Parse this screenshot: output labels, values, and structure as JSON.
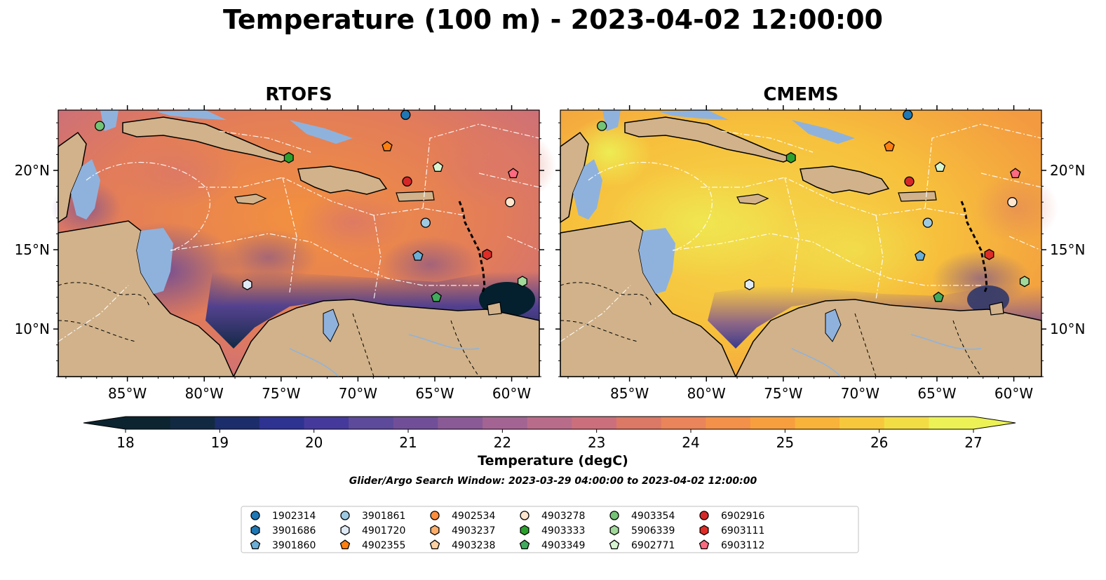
{
  "title": "Temperature (100 m) - 2023-04-02 12:00:00",
  "colors": {
    "land": "#d1b28a",
    "shallow_water": "#8fb2dd",
    "deep_low": "#04202e",
    "contour": "#ffffff"
  },
  "colorbar": {
    "label": "Temperature (degC)",
    "ticks": [
      18,
      19,
      20,
      21,
      22,
      23,
      24,
      25,
      26,
      27
    ],
    "min": 18,
    "max": 27,
    "step": 0.5,
    "extend": "both",
    "stops": [
      "#0b2430",
      "#122942",
      "#1c2d6b",
      "#2e3291",
      "#453a9b",
      "#5d4a9a",
      "#714f98",
      "#8a5a96",
      "#a36493",
      "#b96c8a",
      "#cb6f7d",
      "#dc7866",
      "#ea845a",
      "#f39049",
      "#f79f3f",
      "#f8b33a",
      "#f8c83c",
      "#f3dd45",
      "#ecf256"
    ]
  },
  "search_window": "Glider/Argo Search Window: 2023-03-29 04:00:00 to 2023-04-02 12:00:00",
  "chart_data": [
    {
      "type": "heatmap",
      "title": "RTOFS",
      "variable": "Temperature (degC)",
      "xlim": [
        -89.5,
        -58.2
      ],
      "ylim": [
        7.0,
        23.8
      ],
      "x_ticks": [
        "85°W",
        "80°W",
        "75°W",
        "70°W",
        "65°W",
        "60°W"
      ],
      "y_ticks": [
        "10°N",
        "15°N",
        "20°N"
      ],
      "y_tick_side": "left",
      "tone": "warm-orange basin with purple eddies, cold band along northern South America",
      "floats": [
        {
          "id": "4903354",
          "lon": -86.8,
          "lat": 22.8
        },
        {
          "id": "4903333",
          "lon": -74.5,
          "lat": 20.8
        },
        {
          "id": "1902314",
          "lon": -66.9,
          "lat": 23.5
        },
        {
          "id": "4902355",
          "lon": -68.1,
          "lat": 21.5
        },
        {
          "id": "6902771",
          "lon": -64.8,
          "lat": 20.2
        },
        {
          "id": "6902916",
          "lon": -66.8,
          "lat": 19.3
        },
        {
          "id": "6903112",
          "lon": -59.9,
          "lat": 19.8
        },
        {
          "id": "4903278",
          "lon": -60.1,
          "lat": 18.0
        },
        {
          "id": "3901861",
          "lon": -65.6,
          "lat": 16.7
        },
        {
          "id": "3901860",
          "lon": -66.1,
          "lat": 14.6
        },
        {
          "id": "6903111",
          "lon": -61.6,
          "lat": 14.7
        },
        {
          "id": "5906339",
          "lon": -59.3,
          "lat": 13.0
        },
        {
          "id": "4901720",
          "lon": -77.2,
          "lat": 12.8
        },
        {
          "id": "4903349",
          "lon": -64.9,
          "lat": 12.0
        }
      ]
    },
    {
      "type": "heatmap",
      "title": "CMEMS",
      "variable": "Temperature (degC)",
      "xlim": [
        -89.5,
        -58.2
      ],
      "ylim": [
        7.0,
        23.8
      ],
      "x_ticks": [
        "85°W",
        "80°W",
        "75°W",
        "70°W",
        "65°W",
        "60°W"
      ],
      "y_ticks": [
        "10°N",
        "15°N",
        "20°N"
      ],
      "y_tick_side": "right",
      "tone": "warmer yellow-orange basin, cooler patches near the Antilles and coast",
      "floats": [
        {
          "id": "4903354",
          "lon": -86.8,
          "lat": 22.8
        },
        {
          "id": "4903333",
          "lon": -74.5,
          "lat": 20.8
        },
        {
          "id": "1902314",
          "lon": -66.9,
          "lat": 23.5
        },
        {
          "id": "4902355",
          "lon": -68.1,
          "lat": 21.5
        },
        {
          "id": "6902771",
          "lon": -64.8,
          "lat": 20.2
        },
        {
          "id": "6902916",
          "lon": -66.8,
          "lat": 19.3
        },
        {
          "id": "6903112",
          "lon": -59.9,
          "lat": 19.8
        },
        {
          "id": "4903278",
          "lon": -60.1,
          "lat": 18.0
        },
        {
          "id": "3901861",
          "lon": -65.6,
          "lat": 16.7
        },
        {
          "id": "3901860",
          "lon": -66.1,
          "lat": 14.6
        },
        {
          "id": "6903111",
          "lon": -61.6,
          "lat": 14.7
        },
        {
          "id": "5906339",
          "lon": -59.3,
          "lat": 13.0
        },
        {
          "id": "4901720",
          "lon": -77.2,
          "lat": 12.8
        },
        {
          "id": "4903349",
          "lon": -64.9,
          "lat": 12.0
        }
      ]
    }
  ],
  "legend": {
    "placement": "bottom-center",
    "entries": [
      {
        "id": "1902314",
        "marker": "circle",
        "color": "#1f77b4"
      },
      {
        "id": "3901686",
        "marker": "hexagon",
        "color": "#1f77b4"
      },
      {
        "id": "3901860",
        "marker": "pentagon",
        "color": "#6baed6"
      },
      {
        "id": "3901861",
        "marker": "circle",
        "color": "#9ecae1"
      },
      {
        "id": "4901720",
        "marker": "hexagon",
        "color": "#deebf7"
      },
      {
        "id": "4902355",
        "marker": "pentagon",
        "color": "#ff7f0e"
      },
      {
        "id": "4902534",
        "marker": "circle",
        "color": "#fd8d3c"
      },
      {
        "id": "4903237",
        "marker": "hexagon",
        "color": "#fdae6b"
      },
      {
        "id": "4903238",
        "marker": "pentagon",
        "color": "#fdd0a2"
      },
      {
        "id": "4903278",
        "marker": "circle",
        "color": "#fee6ce"
      },
      {
        "id": "4903333",
        "marker": "hexagon",
        "color": "#2ca02c"
      },
      {
        "id": "4903349",
        "marker": "pentagon",
        "color": "#41ab5d"
      },
      {
        "id": "4903354",
        "marker": "circle",
        "color": "#74c476"
      },
      {
        "id": "5906339",
        "marker": "hexagon",
        "color": "#a1d99b"
      },
      {
        "id": "6902771",
        "marker": "pentagon",
        "color": "#d7f5d0"
      },
      {
        "id": "6902916",
        "marker": "circle",
        "color": "#d62728"
      },
      {
        "id": "6903111",
        "marker": "hexagon",
        "color": "#de2d26"
      },
      {
        "id": "6903112",
        "marker": "pentagon",
        "color": "#fb6a80"
      }
    ]
  }
}
